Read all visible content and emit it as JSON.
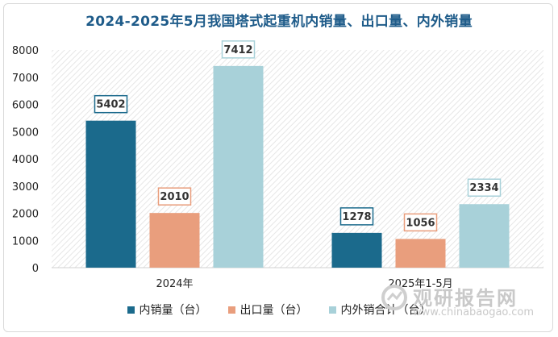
{
  "title": "2024-2025年5月我国塔式起重机内销量、出口量、内外销量",
  "chart_data": {
    "type": "bar",
    "categories": [
      "2024年",
      "2025年1-5月"
    ],
    "series": [
      {
        "name": "内销量（台）",
        "color": "#1b6a8c",
        "values": [
          5402,
          1278
        ]
      },
      {
        "name": "出口量（台）",
        "color": "#e99e7d",
        "values": [
          2010,
          1056
        ]
      },
      {
        "name": "内外销合计（台）",
        "color": "#a8d1d9",
        "values": [
          7412,
          2334
        ]
      }
    ],
    "ylim": [
      0,
      8000
    ],
    "yticks": [
      0,
      1000,
      2000,
      3000,
      4000,
      5000,
      6000,
      7000,
      8000
    ],
    "legend_position": "bottom",
    "plot_background": "diagonal hatch"
  },
  "watermark": {
    "title": "观研报告网",
    "url": "www.chinabaogao.com"
  }
}
